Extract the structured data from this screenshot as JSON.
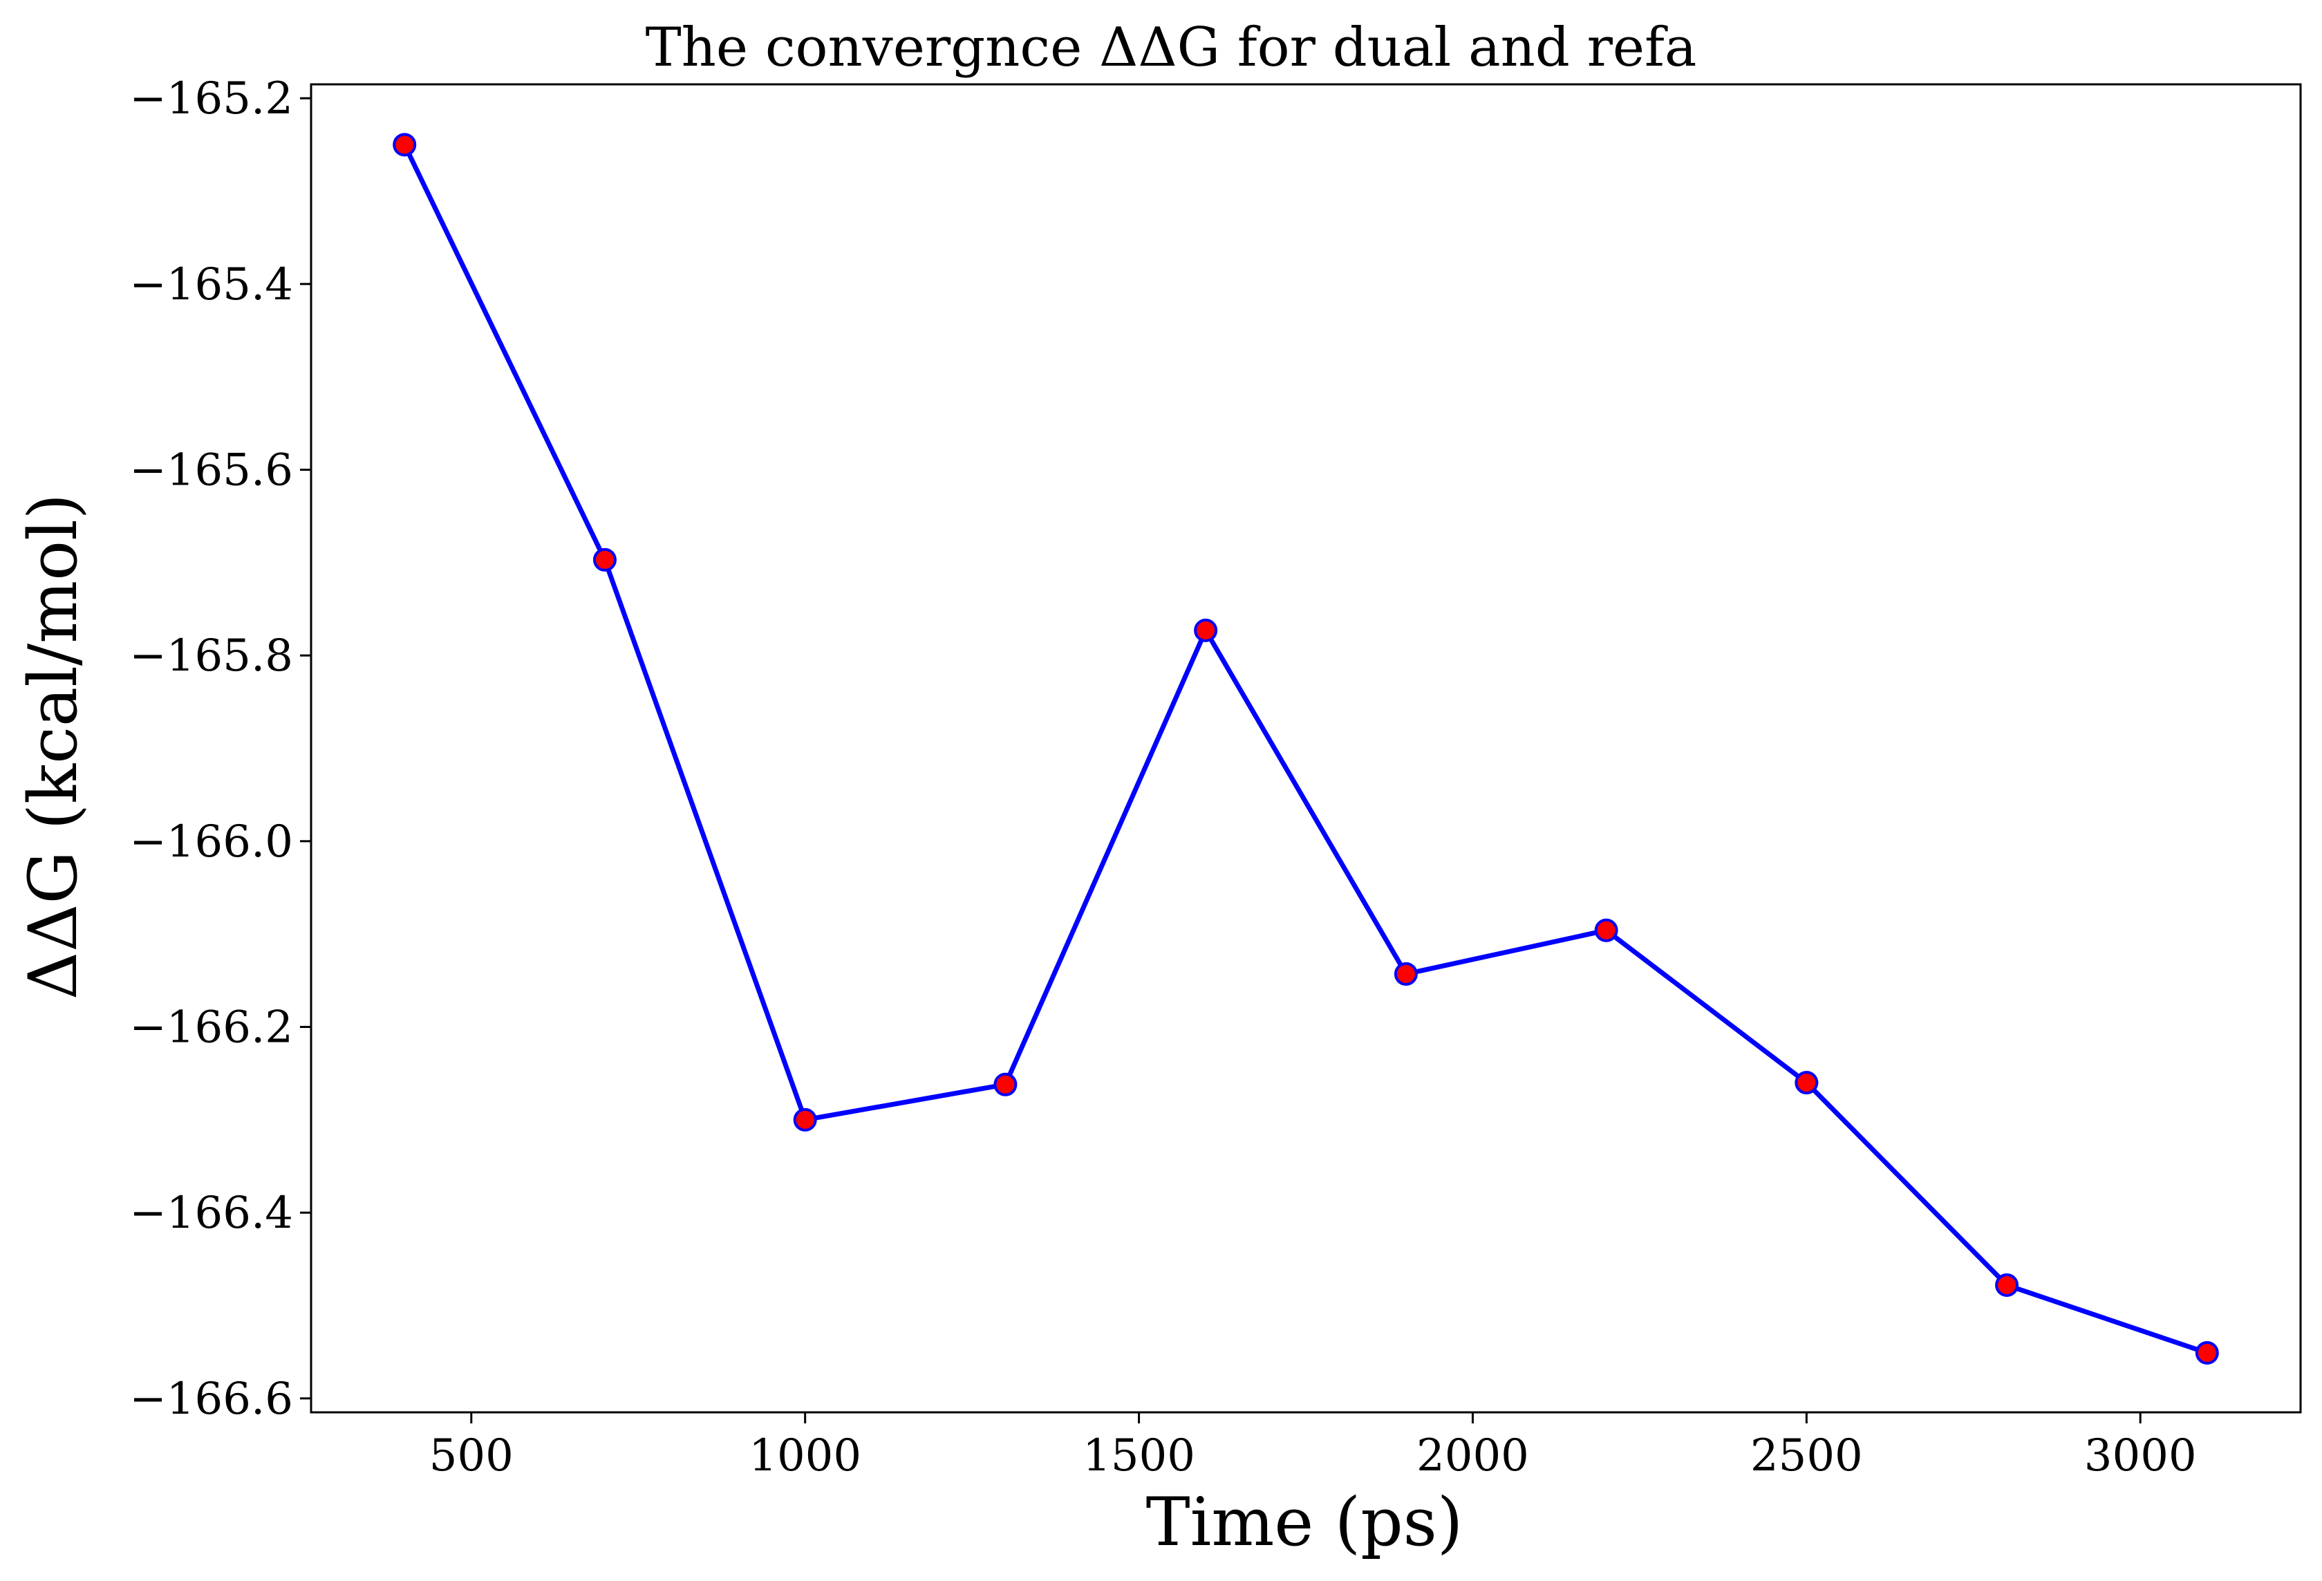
{
  "chart_data": {
    "type": "line",
    "title": "The convergnce  ΔΔG for dual and refa",
    "xlabel": "Time (ps)",
    "ylabel": "ΔΔG (kcal/mol)",
    "xlim": [
      260,
      3240
    ],
    "ylim": [
      -166.615,
      -165.185
    ],
    "x_ticks": [
      500,
      1000,
      1500,
      2000,
      2500,
      3000
    ],
    "x_tick_labels": [
      "500",
      "1000",
      "1500",
      "2000",
      "2500",
      "3000"
    ],
    "y_ticks": [
      -165.2,
      -165.4,
      -165.6,
      -165.8,
      -166.0,
      -166.2,
      -166.4,
      -166.6
    ],
    "y_tick_labels": [
      "−165.2",
      "−165.4",
      "−165.6",
      "−165.8",
      "−166.0",
      "−166.2",
      "−166.4",
      "−166.6"
    ],
    "grid": false,
    "legend": "none",
    "series": [
      {
        "x": [
          400,
          700,
          1000,
          1300,
          1600,
          1900,
          2200,
          2500,
          2800,
          3100
        ],
        "y": [
          -165.25,
          -165.697,
          -166.3,
          -166.262,
          -165.773,
          -166.143,
          -166.096,
          -166.26,
          -166.478,
          -166.551
        ],
        "line_color": "#0000ff",
        "marker_fill": "#ff0000",
        "marker_edge": "#0000ff"
      }
    ]
  }
}
